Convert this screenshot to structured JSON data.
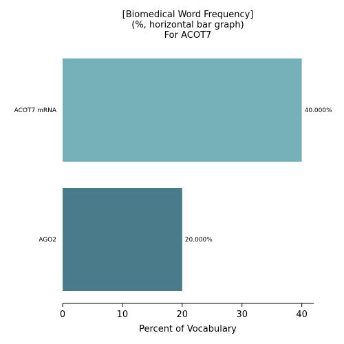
{
  "chart_data": {
    "type": "bar",
    "orientation": "horizontal",
    "title_lines": [
      "[Biomedical Word Frequency]",
      "(%, horizontal bar graph)",
      "For ACOT7"
    ],
    "xlabel": "Percent of Vocabulary",
    "ylabel": "",
    "xlim": [
      0,
      42
    ],
    "xticks": [
      0,
      10,
      20,
      30,
      40
    ],
    "grid": false,
    "categories": [
      "ACOT7 mRNA",
      "AGO2"
    ],
    "values": [
      40,
      20
    ],
    "data_labels": [
      "40.000%",
      "20.000%"
    ],
    "colors": [
      "#76b1ba",
      "#4a7b8b"
    ]
  }
}
